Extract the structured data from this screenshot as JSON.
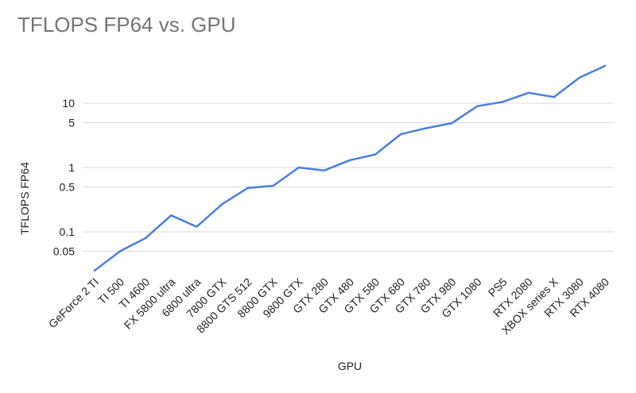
{
  "chart_data": {
    "type": "line",
    "title": "TFLOPS FP64 vs. GPU",
    "xlabel": "GPU",
    "ylabel": "TFLOPS FP64",
    "yscale": "log",
    "ylim": [
      0.02,
      40
    ],
    "yticks": [
      0.05,
      0.1,
      0.5,
      1,
      5,
      10
    ],
    "ytick_labels": [
      "0.05",
      "0.1",
      "0.5",
      "1",
      "5",
      "10"
    ],
    "grid": true,
    "legend": "none",
    "line_color": "#4a7fe0",
    "categories": [
      "GeForce 2 TI",
      "TI 500",
      "TI 4600",
      "FX 5800 ultra",
      "6800 ultra",
      "7800 GTX",
      "8800 GTS 512",
      "8800 GTX",
      "9800 GTX",
      "GTX 280",
      "GTX 480",
      "GTX 580",
      "GTX 680",
      "GTX 780",
      "GTX 980",
      "GTX 1080",
      "PS5",
      "RTX 2080",
      "XBOX series X",
      "RTX 3080",
      "RTX 4080"
    ],
    "series": [
      {
        "values": [
          0.025,
          0.05,
          0.08,
          0.18,
          0.12,
          0.27,
          0.48,
          0.52,
          1.0,
          0.9,
          1.3,
          1.6,
          3.3,
          4.1,
          4.9,
          9.0,
          10.5,
          14.5,
          12.5,
          25.0,
          38.0
        ]
      }
    ]
  }
}
